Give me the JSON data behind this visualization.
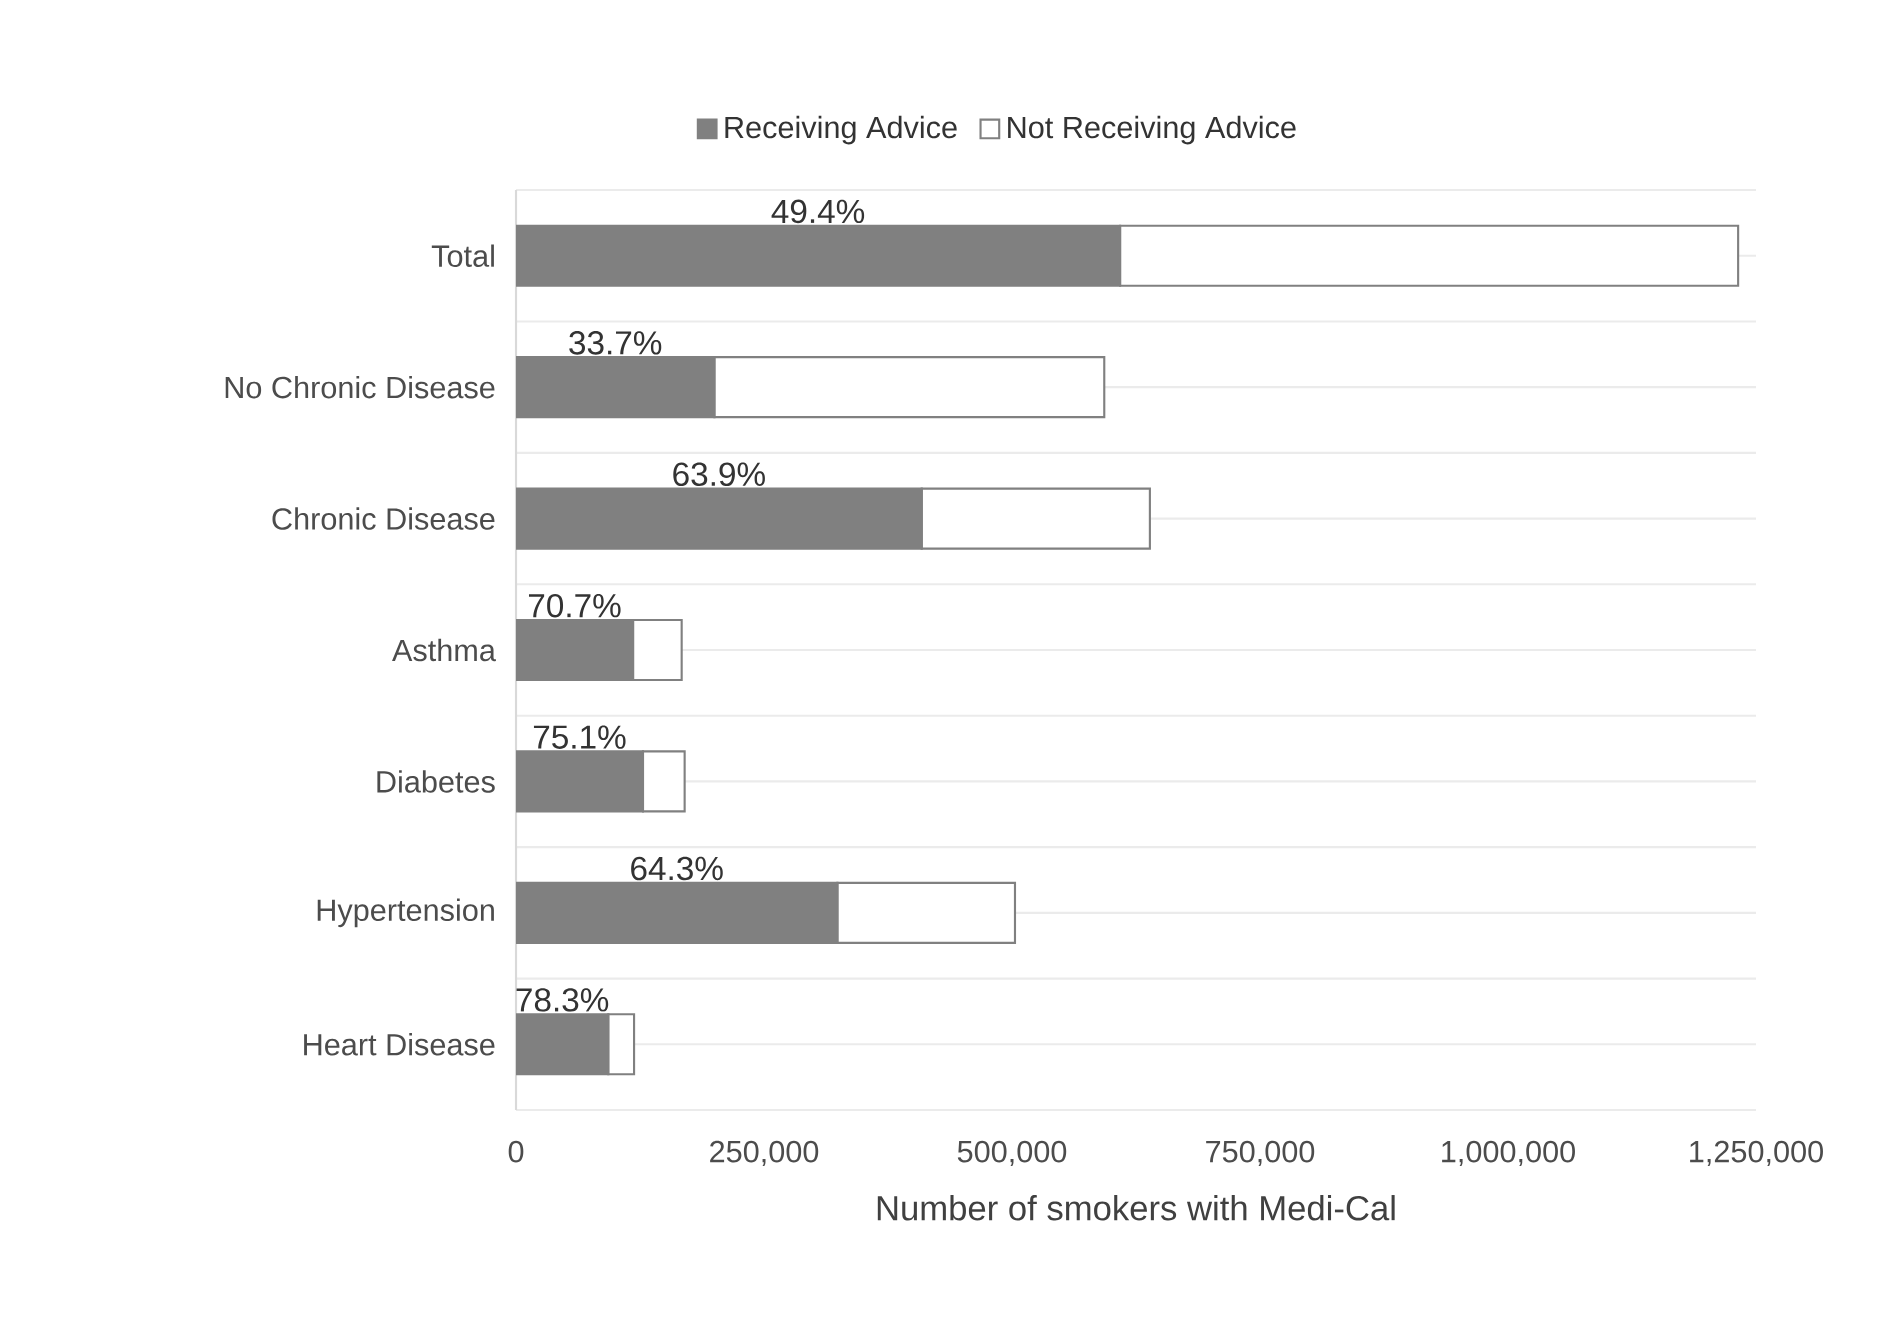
{
  "chart_data": {
    "type": "bar",
    "orientation": "horizontal",
    "stacked": true,
    "categories": [
      "Total",
      "No Chronic Disease",
      "Chronic Disease",
      "Asthma",
      "Diabetes",
      "Hypertension",
      "Heart Disease"
    ],
    "series": [
      {
        "name": "Receiving Advice",
        "color": "#808080",
        "values": [
          609000,
          200000,
          409000,
          118000,
          128000,
          324000,
          93000
        ]
      },
      {
        "name": "Not Receiving Advice",
        "color": "#ffffff",
        "values": [
          623000,
          393000,
          230000,
          49000,
          42000,
          179000,
          26000
        ]
      }
    ],
    "xlabel": "Number of smokers with Medi-Cal",
    "xlim": [
      0,
      1250000
    ],
    "xticks": [
      0,
      {
        "value": 250000,
        "label": "250,000"
      },
      {
        "value": 500000,
        "label": "500,000"
      },
      {
        "value": 750000,
        "label": "750,000"
      },
      {
        "value": 1000000,
        "label": "1,000,000"
      },
      {
        "value": 1250000,
        "label": "1,250,000"
      }
    ],
    "annotations": [
      "49.4%",
      "33.7%",
      "63.9%",
      "70.7%",
      "75.1%",
      "64.3%",
      "78.3%"
    ],
    "grid": "y",
    "legend": "top"
  }
}
